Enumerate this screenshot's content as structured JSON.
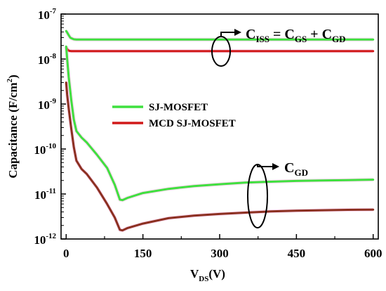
{
  "chart_data": {
    "type": "line",
    "xlabel_main": "V",
    "xlabel_sub": "DS",
    "xlabel_unit": "(V)",
    "ylabel_main": "Capacitance (F/cm",
    "ylabel_sup": "2",
    "ylabel_close": ")",
    "xlim": [
      -10,
      610
    ],
    "ylim_exp": [
      -12,
      -7
    ],
    "yscale": "log",
    "x_ticks": [
      0,
      150,
      300,
      450,
      600
    ],
    "x_tick_labels": [
      "0",
      "150",
      "300",
      "450",
      "600"
    ],
    "y_ticks_exp": [
      -12,
      -11,
      -10,
      -9,
      -8,
      -7
    ],
    "y_tick_labels": [
      {
        "base": "10",
        "exp": "-12"
      },
      {
        "base": "10",
        "exp": "-11"
      },
      {
        "base": "10",
        "exp": "-10"
      },
      {
        "base": "10",
        "exp": "-9"
      },
      {
        "base": "10",
        "exp": "-8"
      },
      {
        "base": "10",
        "exp": "-7"
      }
    ],
    "legend": [
      {
        "label": "SJ-MOSFET",
        "color": "#3fe03f"
      },
      {
        "label": "MCD SJ-MOSFET",
        "color": "#d11a1a"
      }
    ],
    "series": [
      {
        "name": "SJ-MOSFET CISS",
        "color": "#3fe03f",
        "x": [
          0,
          2,
          5,
          8,
          10,
          15,
          20,
          50,
          100,
          200,
          300,
          400,
          500,
          600
        ],
        "y": [
          4.2e-08,
          3.9e-08,
          3.4e-08,
          3e-08,
          2.9e-08,
          2.75e-08,
          2.72e-08,
          2.72e-08,
          2.72e-08,
          2.72e-08,
          2.72e-08,
          2.72e-08,
          2.72e-08,
          2.72e-08
        ]
      },
      {
        "name": "MCD SJ-MOSFET CISS",
        "color": "#d11a1a",
        "x": [
          0,
          3,
          6,
          10,
          20,
          50,
          100,
          200,
          300,
          400,
          500,
          600
        ],
        "y": [
          1.8e-08,
          1.6e-08,
          1.52e-08,
          1.5e-08,
          1.5e-08,
          1.5e-08,
          1.5e-08,
          1.5e-08,
          1.5e-08,
          1.5e-08,
          1.5e-08,
          1.5e-08
        ]
      },
      {
        "name": "SJ-MOSFET CGD",
        "color": "#3fe03f",
        "x": [
          0,
          2,
          5,
          10,
          15,
          20,
          30,
          40,
          60,
          80,
          95,
          105,
          110,
          120,
          150,
          200,
          250,
          300,
          350,
          400,
          450,
          500,
          550,
          600
        ],
        "y": [
          1.9e-08,
          1e-08,
          4e-09,
          1.2e-09,
          4.5e-10,
          2.5e-10,
          1.8e-10,
          1.4e-10,
          7.5e-11,
          3.8e-11,
          1.6e-11,
          7.5e-12,
          7.3e-12,
          8.2e-12,
          1.05e-11,
          1.3e-11,
          1.5e-11,
          1.65e-11,
          1.8e-11,
          1.88e-11,
          1.95e-11,
          2e-11,
          2.04e-11,
          2.08e-11
        ]
      },
      {
        "name": "MCD SJ-MOSFET CGD",
        "color": "#8b3020",
        "x": [
          0,
          2,
          5,
          10,
          15,
          20,
          30,
          40,
          60,
          80,
          95,
          105,
          110,
          120,
          150,
          200,
          250,
          300,
          350,
          400,
          450,
          500,
          550,
          600
        ],
        "y": [
          3e-09,
          1.6e-09,
          8e-10,
          2.8e-10,
          1.1e-10,
          5.5e-11,
          3.6e-11,
          2.8e-11,
          1.4e-11,
          6e-12,
          3e-12,
          1.6e-12,
          1.55e-12,
          1.75e-12,
          2.2e-12,
          2.9e-12,
          3.3e-12,
          3.6e-12,
          3.85e-12,
          4.1e-12,
          4.25e-12,
          4.35e-12,
          4.45e-12,
          4.5e-12
        ]
      }
    ],
    "annotations": {
      "ciss": {
        "main": "C",
        "sub": "ISS",
        "eq": " = C",
        "sub2": "GS",
        "plus": " + C",
        "sub3": "GD"
      },
      "cgd": {
        "main": "C",
        "sub": "GD"
      }
    }
  }
}
